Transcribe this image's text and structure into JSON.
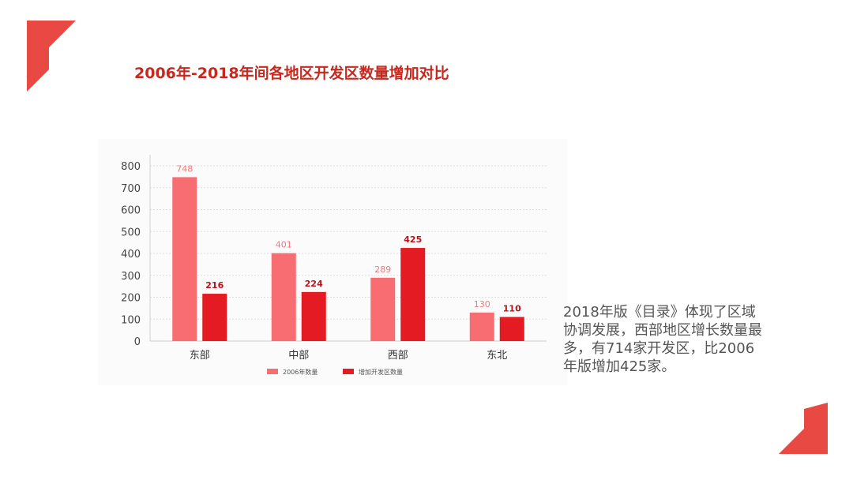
{
  "title": "2006年-2018年间各地区开发区数量增加对比",
  "side_text": "2018年版《目录》体现了区域协调发展，西部地区增长数量最多，有714家开发区，比2006年版增加425家。",
  "colors": {
    "accent": "#e84a43",
    "title": "#c8281e",
    "series_2006": "#f76d72",
    "series_added": "#e41b23"
  },
  "chart_data": {
    "type": "bar",
    "title": "",
    "xlabel": "",
    "ylabel": "",
    "categories": [
      "东部",
      "中部",
      "西部",
      "东北"
    ],
    "series": [
      {
        "name": "2006年数量",
        "values": [
          748,
          401,
          289,
          130
        ]
      },
      {
        "name": "增加开发区数量",
        "values": [
          216,
          224,
          425,
          110
        ]
      }
    ],
    "ylim": [
      0,
      800
    ],
    "yticks": [
      0,
      100,
      200,
      300,
      400,
      500,
      600,
      700,
      800
    ],
    "grid": true,
    "legend": "bottom"
  }
}
